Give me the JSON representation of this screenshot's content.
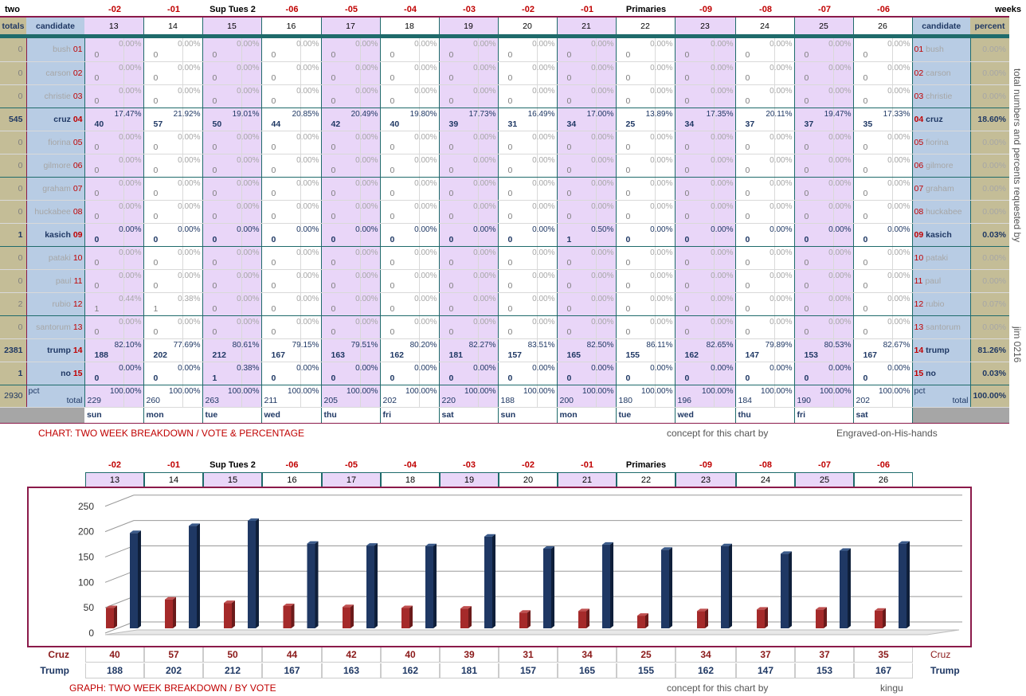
{
  "top_labels": {
    "left": "two",
    "right": "weeks"
  },
  "week_markers": [
    "-02",
    "-01",
    "Sup Tues 2",
    "-06",
    "-05",
    "-04",
    "-03",
    "-02",
    "-01",
    "Primaries",
    "-09",
    "-08",
    "-07",
    "-06"
  ],
  "headers": {
    "totals": "totals",
    "candidate": "candidate",
    "percent": "percent"
  },
  "dates": [
    "13",
    "14",
    "15",
    "16",
    "17",
    "18",
    "19",
    "20",
    "21",
    "22",
    "23",
    "24",
    "25",
    "26"
  ],
  "days": [
    "sun",
    "mon",
    "tue",
    "wed",
    "thu",
    "fri",
    "sat",
    "sun",
    "mon",
    "tue",
    "wed",
    "thu",
    "fri",
    "sat"
  ],
  "candidates": [
    {
      "total": "0",
      "name": "bush",
      "num": "01",
      "pct": "0.00%",
      "vals": [
        "0",
        "0",
        "0",
        "0",
        "0",
        "0",
        "0",
        "0",
        "0",
        "0",
        "0",
        "0",
        "0",
        "0"
      ],
      "pcts": [
        "0.00%",
        "0.00%",
        "0.00%",
        "0.00%",
        "0.00%",
        "0.00%",
        "0.00%",
        "0.00%",
        "0.00%",
        "0.00%",
        "0.00%",
        "0.00%",
        "0.00%",
        "0.00%"
      ],
      "bold": false
    },
    {
      "total": "0",
      "name": "carson",
      "num": "02",
      "pct": "0.00%",
      "vals": [
        "0",
        "0",
        "0",
        "0",
        "0",
        "0",
        "0",
        "0",
        "0",
        "0",
        "0",
        "0",
        "0",
        "0"
      ],
      "pcts": [
        "0.00%",
        "0.00%",
        "0.00%",
        "0.00%",
        "0.00%",
        "0.00%",
        "0.00%",
        "0.00%",
        "0.00%",
        "0.00%",
        "0.00%",
        "0.00%",
        "0.00%",
        "0.00%"
      ],
      "bold": false
    },
    {
      "total": "0",
      "name": "christie",
      "num": "03",
      "pct": "0.00%",
      "vals": [
        "0",
        "0",
        "0",
        "0",
        "0",
        "0",
        "0",
        "0",
        "0",
        "0",
        "0",
        "0",
        "0",
        "0"
      ],
      "pcts": [
        "0.00%",
        "0.00%",
        "0.00%",
        "0.00%",
        "0.00%",
        "0.00%",
        "0.00%",
        "0.00%",
        "0.00%",
        "0.00%",
        "0.00%",
        "0.00%",
        "0.00%",
        "0.00%"
      ],
      "bold": false
    },
    {
      "total": "545",
      "name": "cruz",
      "num": "04",
      "pct": "18.60%",
      "vals": [
        "40",
        "57",
        "50",
        "44",
        "42",
        "40",
        "39",
        "31",
        "34",
        "25",
        "34",
        "37",
        "37",
        "35"
      ],
      "pcts": [
        "17.47%",
        "21.92%",
        "19.01%",
        "20.85%",
        "20.49%",
        "19.80%",
        "17.73%",
        "16.49%",
        "17.00%",
        "13.89%",
        "17.35%",
        "20.11%",
        "19.47%",
        "17.33%"
      ],
      "bold": true
    },
    {
      "total": "0",
      "name": "fiorina",
      "num": "05",
      "pct": "0.00%",
      "vals": [
        "0",
        "0",
        "0",
        "0",
        "0",
        "0",
        "0",
        "0",
        "0",
        "0",
        "0",
        "0",
        "0",
        "0"
      ],
      "pcts": [
        "0.00%",
        "0.00%",
        "0.00%",
        "0.00%",
        "0.00%",
        "0.00%",
        "0.00%",
        "0.00%",
        "0.00%",
        "0.00%",
        "0.00%",
        "0.00%",
        "0.00%",
        "0.00%"
      ],
      "bold": false
    },
    {
      "total": "0",
      "name": "gilmore",
      "num": "06",
      "pct": "0.00%",
      "vals": [
        "0",
        "0",
        "0",
        "0",
        "0",
        "0",
        "0",
        "0",
        "0",
        "0",
        "0",
        "0",
        "0",
        "0"
      ],
      "pcts": [
        "0.00%",
        "0.00%",
        "0.00%",
        "0.00%",
        "0.00%",
        "0.00%",
        "0.00%",
        "0.00%",
        "0.00%",
        "0.00%",
        "0.00%",
        "0.00%",
        "0.00%",
        "0.00%"
      ],
      "bold": false
    },
    {
      "total": "0",
      "name": "graham",
      "num": "07",
      "pct": "0.00%",
      "vals": [
        "0",
        "0",
        "0",
        "0",
        "0",
        "0",
        "0",
        "0",
        "0",
        "0",
        "0",
        "0",
        "0",
        "0"
      ],
      "pcts": [
        "0.00%",
        "0.00%",
        "0.00%",
        "0.00%",
        "0.00%",
        "0.00%",
        "0.00%",
        "0.00%",
        "0.00%",
        "0.00%",
        "0.00%",
        "0.00%",
        "0.00%",
        "0.00%"
      ],
      "bold": false
    },
    {
      "total": "0",
      "name": "huckabee",
      "num": "08",
      "pct": "0.00%",
      "vals": [
        "0",
        "0",
        "0",
        "0",
        "0",
        "0",
        "0",
        "0",
        "0",
        "0",
        "0",
        "0",
        "0",
        "0"
      ],
      "pcts": [
        "0.00%",
        "0.00%",
        "0.00%",
        "0.00%",
        "0.00%",
        "0.00%",
        "0.00%",
        "0.00%",
        "0.00%",
        "0.00%",
        "0.00%",
        "0.00%",
        "0.00%",
        "0.00%"
      ],
      "bold": false
    },
    {
      "total": "1",
      "name": "kasich",
      "num": "09",
      "pct": "0.03%",
      "vals": [
        "0",
        "0",
        "0",
        "0",
        "0",
        "0",
        "0",
        "0",
        "1",
        "0",
        "0",
        "0",
        "0",
        "0"
      ],
      "pcts": [
        "0.00%",
        "0.00%",
        "0.00%",
        "0.00%",
        "0.00%",
        "0.00%",
        "0.00%",
        "0.00%",
        "0.50%",
        "0.00%",
        "0.00%",
        "0.00%",
        "0.00%",
        "0.00%"
      ],
      "bold": true
    },
    {
      "total": "0",
      "name": "pataki",
      "num": "10",
      "pct": "0.00%",
      "vals": [
        "0",
        "0",
        "0",
        "0",
        "0",
        "0",
        "0",
        "0",
        "0",
        "0",
        "0",
        "0",
        "0",
        "0"
      ],
      "pcts": [
        "0.00%",
        "0.00%",
        "0.00%",
        "0.00%",
        "0.00%",
        "0.00%",
        "0.00%",
        "0.00%",
        "0.00%",
        "0.00%",
        "0.00%",
        "0.00%",
        "0.00%",
        "0.00%"
      ],
      "bold": false
    },
    {
      "total": "0",
      "name": "paul",
      "num": "11",
      "pct": "0.00%",
      "vals": [
        "0",
        "0",
        "0",
        "0",
        "0",
        "0",
        "0",
        "0",
        "0",
        "0",
        "0",
        "0",
        "0",
        "0"
      ],
      "pcts": [
        "0.00%",
        "0.00%",
        "0.00%",
        "0.00%",
        "0.00%",
        "0.00%",
        "0.00%",
        "0.00%",
        "0.00%",
        "0.00%",
        "0.00%",
        "0.00%",
        "0.00%",
        "0.00%"
      ],
      "bold": false
    },
    {
      "total": "2",
      "name": "rubio",
      "num": "12",
      "pct": "0.07%",
      "vals": [
        "1",
        "1",
        "0",
        "0",
        "0",
        "0",
        "0",
        "0",
        "0",
        "0",
        "0",
        "0",
        "0",
        "0"
      ],
      "pcts": [
        "0.44%",
        "0.38%",
        "0.00%",
        "0.00%",
        "0.00%",
        "0.00%",
        "0.00%",
        "0.00%",
        "0.00%",
        "0.00%",
        "0.00%",
        "0.00%",
        "0.00%",
        "0.00%"
      ],
      "bold": false
    },
    {
      "total": "0",
      "name": "santorum",
      "num": "13",
      "pct": "0.00%",
      "vals": [
        "0",
        "0",
        "0",
        "0",
        "0",
        "0",
        "0",
        "0",
        "0",
        "0",
        "0",
        "0",
        "0",
        "0"
      ],
      "pcts": [
        "0.00%",
        "0.00%",
        "0.00%",
        "0.00%",
        "0.00%",
        "0.00%",
        "0.00%",
        "0.00%",
        "0.00%",
        "0.00%",
        "0.00%",
        "0.00%",
        "0.00%",
        "0.00%"
      ],
      "bold": false
    },
    {
      "total": "2381",
      "name": "trump",
      "num": "14",
      "pct": "81.26%",
      "vals": [
        "188",
        "202",
        "212",
        "167",
        "163",
        "162",
        "181",
        "157",
        "165",
        "155",
        "162",
        "147",
        "153",
        "167"
      ],
      "pcts": [
        "82.10%",
        "77.69%",
        "80.61%",
        "79.15%",
        "79.51%",
        "80.20%",
        "82.27%",
        "83.51%",
        "82.50%",
        "86.11%",
        "82.65%",
        "79.89%",
        "80.53%",
        "82.67%"
      ],
      "bold": true
    },
    {
      "total": "1",
      "name": "no",
      "num": "15",
      "pct": "0.03%",
      "vals": [
        "0",
        "0",
        "1",
        "0",
        "0",
        "0",
        "0",
        "0",
        "0",
        "0",
        "0",
        "0",
        "0",
        "0"
      ],
      "pcts": [
        "0.00%",
        "0.00%",
        "0.38%",
        "0.00%",
        "0.00%",
        "0.00%",
        "0.00%",
        "0.00%",
        "0.00%",
        "0.00%",
        "0.00%",
        "0.00%",
        "0.00%",
        "0.00%"
      ],
      "bold": true
    }
  ],
  "totals_row": {
    "grand": "2930",
    "label": "total",
    "pct_label": "pct",
    "pct": "100.00%",
    "vals": [
      "229",
      "260",
      "263",
      "211",
      "205",
      "202",
      "220",
      "188",
      "200",
      "180",
      "196",
      "184",
      "190",
      "202"
    ],
    "pcts": [
      "100.00%",
      "100.00%",
      "100.00%",
      "100.00%",
      "100.00%",
      "100.00%",
      "100.00%",
      "100.00%",
      "100.00%",
      "100.00%",
      "100.00%",
      "100.00%",
      "100.00%",
      "100.00%"
    ]
  },
  "captions": {
    "chart_title": "CHART: TWO WEEK BREAKDOWN / VOTE & PERCENTAGE",
    "concept1": "concept for this chart by",
    "author1": "Engraved-on-His-hands",
    "graph_title": "GRAPH: TWO WEEK BREAKDOWN / BY VOTE",
    "concept2": "concept for this chart by",
    "author2": "kingu",
    "side_note": "total numbers and percents requested by",
    "side_author": "jim 0216"
  },
  "chart_data": {
    "type": "bar",
    "categories": [
      "13",
      "14",
      "15",
      "16",
      "17",
      "18",
      "19",
      "20",
      "21",
      "22",
      "23",
      "24",
      "25",
      "26"
    ],
    "series": [
      {
        "name": "Cruz",
        "values": [
          40,
          57,
          50,
          44,
          42,
          40,
          39,
          31,
          34,
          25,
          34,
          37,
          37,
          35
        ],
        "color": "#a52a2a"
      },
      {
        "name": "Trump",
        "values": [
          188,
          202,
          212,
          167,
          163,
          162,
          181,
          157,
          165,
          155,
          162,
          147,
          153,
          167
        ],
        "color": "#1f3864"
      }
    ],
    "ylim": [
      0,
      250
    ],
    "yticks": [
      "0",
      "50",
      "100",
      "150",
      "200",
      "250"
    ],
    "grid": true,
    "xlabel": "",
    "ylabel": ""
  }
}
